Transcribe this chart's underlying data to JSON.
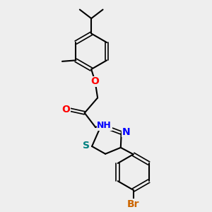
{
  "background_color": "#eeeeee",
  "bond_color": "#000000",
  "atom_colors": {
    "O": "#ff0000",
    "N": "#0000ff",
    "S": "#008080",
    "Br": "#cc6600",
    "C": "#000000",
    "H": "#000000"
  },
  "figsize": [
    3.0,
    3.0
  ],
  "dpi": 100
}
